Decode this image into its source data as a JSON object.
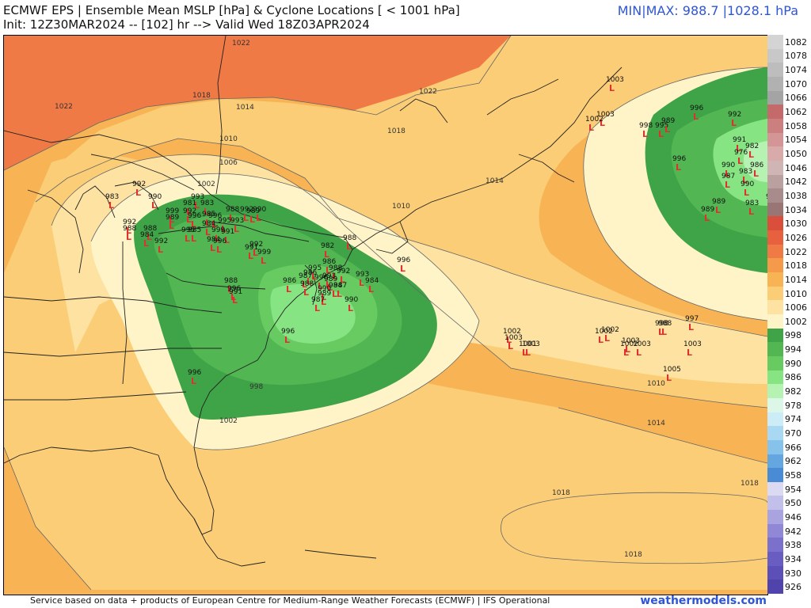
{
  "header": {
    "title": "ECMWF EPS | Ensemble Mean MSLP [hPa] & Cyclone Locations [ < 1001 hPa]",
    "subtitle": "Init: 12Z30MAR2024 -- [102] hr --> Valid Wed 18Z03APR2024",
    "minmax": "MIN|MAX: 988.7 |1028.1 hPa"
  },
  "footer": {
    "credit": "Service based on data + products of European Centre for Medium-Range Weather Forecasts (ECMWF) | IFS Operational",
    "brand": "weathermodels.com"
  },
  "colors": {
    "accent": "#2d55d6",
    "low_marker": "#e03030",
    "land_border": "#222222"
  },
  "legend": {
    "levels": [
      {
        "label": "1082",
        "color": "#d4d4d4"
      },
      {
        "label": "1078",
        "color": "#c8c8c8"
      },
      {
        "label": "1074",
        "color": "#bdbdbd"
      },
      {
        "label": "1070",
        "color": "#b1b1b1"
      },
      {
        "label": "1066",
        "color": "#a4a4a4"
      },
      {
        "label": "1062",
        "color": "#c56a6a"
      },
      {
        "label": "1058",
        "color": "#cc7f7f"
      },
      {
        "label": "1054",
        "color": "#d39595"
      },
      {
        "label": "1050",
        "color": "#d9aaaa"
      },
      {
        "label": "1046",
        "color": "#d0b5b5"
      },
      {
        "label": "1042",
        "color": "#bba0a0"
      },
      {
        "label": "1038",
        "color": "#a88b8b"
      },
      {
        "label": "1034",
        "color": "#9a7575"
      },
      {
        "label": "1030",
        "color": "#d94f3c"
      },
      {
        "label": "1026",
        "color": "#e8613f"
      },
      {
        "label": "1022",
        "color": "#f07a45"
      },
      {
        "label": "1018",
        "color": "#f59a4b"
      },
      {
        "label": "1014",
        "color": "#f8b454"
      },
      {
        "label": "1010",
        "color": "#fbcd76"
      },
      {
        "label": "1006",
        "color": "#fde2a2"
      },
      {
        "label": "1002",
        "color": "#fff4c8"
      },
      {
        "label": "998",
        "color": "#3fa447"
      },
      {
        "label": "994",
        "color": "#52b653"
      },
      {
        "label": "990",
        "color": "#67cb62"
      },
      {
        "label": "986",
        "color": "#86e483"
      },
      {
        "label": "982",
        "color": "#b6f2b1"
      },
      {
        "label": "978",
        "color": "#dcf7e8"
      },
      {
        "label": "974",
        "color": "#ccecf7"
      },
      {
        "label": "970",
        "color": "#a9d9f2"
      },
      {
        "label": "966",
        "color": "#86c2ea"
      },
      {
        "label": "962",
        "color": "#63a6e0"
      },
      {
        "label": "958",
        "color": "#4a8bd6"
      },
      {
        "label": "954",
        "color": "#dcdaf2"
      },
      {
        "label": "950",
        "color": "#c2bfea"
      },
      {
        "label": "946",
        "color": "#a9a3e0"
      },
      {
        "label": "942",
        "color": "#9087d6"
      },
      {
        "label": "938",
        "color": "#7b70cc"
      },
      {
        "label": "934",
        "color": "#6a5dc2"
      },
      {
        "label": "930",
        "color": "#5c4fb8"
      },
      {
        "label": "926",
        "color": "#5043ac"
      }
    ]
  },
  "map": {
    "isobar_labels": [
      "1022",
      "1018",
      "1014",
      "1010",
      "1006",
      "1002",
      "1022",
      "1018",
      "1014",
      "1010",
      "1010",
      "1014",
      "1018",
      "1018",
      "1018",
      "998",
      "1002",
      "1022"
    ],
    "cyclones": [
      "1003",
      "1003",
      "1002",
      "998",
      "995",
      "989",
      "996",
      "992",
      "991",
      "982",
      "976",
      "986",
      "990",
      "983",
      "987",
      "990",
      "988",
      "996",
      "989",
      "989",
      "983",
      "983",
      "992",
      "990",
      "993",
      "981",
      "983",
      "992",
      "996",
      "999",
      "985",
      "988",
      "992",
      "989",
      "990",
      "995",
      "996",
      "993",
      "984",
      "989",
      "988",
      "988",
      "992",
      "985",
      "999",
      "991",
      "995",
      "996",
      "984",
      "992",
      "984",
      "991",
      "988",
      "982",
      "996",
      "986",
      "988",
      "993",
      "992",
      "993",
      "984",
      "989",
      "987",
      "990",
      "986",
      "995",
      "987",
      "986",
      "988",
      "990",
      "989",
      "987",
      "990",
      "984",
      "996",
      "988",
      "992",
      "999",
      "996",
      "991",
      "996",
      "1002",
      "1003",
      "1003",
      "1001",
      "1002",
      "1002",
      "1003",
      "1002",
      "1003",
      "998",
      "988",
      "997",
      "1003",
      "1005"
    ]
  }
}
